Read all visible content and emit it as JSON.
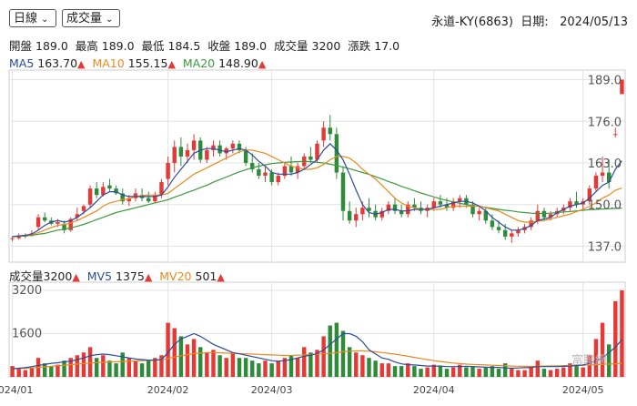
{
  "controls": {
    "period": "日線",
    "indicator": "成交量"
  },
  "header": {
    "stock": "永道-KY(6863)",
    "date_label": "日期:",
    "date": "2024/05/13"
  },
  "ohlc": {
    "open_label": "開盤",
    "open": "189.0",
    "high_label": "最高",
    "high": "189.0",
    "low_label": "最低",
    "low": "184.5",
    "close_label": "收盤",
    "close": "189.0",
    "volume_label": "成交量",
    "volume": "3200",
    "change_label": "漲跌",
    "change": "17.0"
  },
  "ma_legend": [
    {
      "label": "MA5",
      "value": "163.70",
      "arrow": "▲",
      "color": "#2b4b9b"
    },
    {
      "label": "MA10",
      "value": "155.15",
      "arrow": "▲",
      "color": "#e98a1f"
    },
    {
      "label": "MA20",
      "value": "148.90",
      "arrow": "▲",
      "color": "#3c9a3c"
    }
  ],
  "vol_legend": [
    {
      "label": "成交量",
      "value": "3200",
      "arrow": "▲",
      "color": "#222222"
    },
    {
      "label": "MV5",
      "value": "1375",
      "arrow": "▲",
      "color": "#2b4b9b"
    },
    {
      "label": "MV20",
      "value": "501",
      "arrow": "▲",
      "color": "#e98a1f"
    }
  ],
  "watermark": "富聯網",
  "colors": {
    "up": "#e53935",
    "down": "#2e8b3a",
    "ma5": "#2b4b9b",
    "ma10": "#e98a1f",
    "ma20": "#3c9a3c"
  },
  "chart_data": {
    "type": "candlestick",
    "price_axis": {
      "ticks": [
        "189.0",
        "176.0",
        "163.0",
        "150.0",
        "137.0"
      ],
      "values": [
        189,
        176,
        163,
        150,
        137
      ],
      "ylim": [
        132,
        192
      ]
    },
    "volume_axis": {
      "ticks": [
        "3200",
        "1600"
      ],
      "values": [
        3200,
        1600
      ],
      "ylim": [
        0,
        3500
      ]
    },
    "x_labels": [
      {
        "label": "2024/01",
        "index": 0
      },
      {
        "label": "2024/02",
        "index": 24
      },
      {
        "label": "2024/03",
        "index": 40
      },
      {
        "label": "2024/04",
        "index": 65
      },
      {
        "label": "2024/05",
        "index": 88
      }
    ],
    "candles": [
      [
        139.5,
        140,
        138.5,
        139.5,
        400
      ],
      [
        139.5,
        141,
        139,
        140,
        300
      ],
      [
        140,
        141,
        139.5,
        140.5,
        250
      ],
      [
        140.5,
        142,
        140,
        141,
        350
      ],
      [
        143,
        147,
        142,
        146,
        700
      ],
      [
        146,
        147.5,
        144.5,
        145,
        500
      ],
      [
        145,
        146,
        143.5,
        144,
        400
      ],
      [
        144,
        145.5,
        143,
        144.5,
        450
      ],
      [
        144,
        145,
        141,
        142,
        600
      ],
      [
        142,
        146,
        141.5,
        145.5,
        700
      ],
      [
        146,
        149,
        145,
        147,
        800
      ],
      [
        148,
        150,
        147,
        149.5,
        900
      ],
      [
        150,
        156,
        149,
        155,
        1100
      ],
      [
        155,
        157,
        152,
        153,
        700
      ],
      [
        153,
        157,
        152.5,
        155.5,
        800
      ],
      [
        156,
        158,
        154,
        155,
        600
      ],
      [
        155,
        156,
        153,
        153.5,
        500
      ],
      [
        153.5,
        155,
        150,
        151,
        900
      ],
      [
        151,
        153,
        149.5,
        152,
        700
      ],
      [
        152,
        155,
        151,
        153.5,
        600
      ],
      [
        153,
        155,
        151,
        152,
        500
      ],
      [
        152,
        154,
        150.5,
        151,
        600
      ],
      [
        151,
        154,
        150.5,
        153,
        700
      ],
      [
        153,
        158,
        152,
        157,
        800
      ],
      [
        158,
        165,
        156,
        163,
        2000
      ],
      [
        163,
        170,
        160,
        168,
        1800
      ],
      [
        168,
        171,
        162,
        165,
        1500
      ],
      [
        165,
        169,
        163,
        167,
        1200
      ],
      [
        167,
        172,
        164,
        170,
        1400
      ],
      [
        170,
        171,
        163,
        164,
        1100
      ],
      [
        164,
        168,
        163,
        167,
        900
      ],
      [
        167,
        170,
        165,
        168.5,
        1000
      ],
      [
        168.5,
        170,
        165,
        166,
        800
      ],
      [
        166,
        168,
        164,
        167.5,
        700
      ],
      [
        167.5,
        170,
        166,
        169,
        900
      ],
      [
        169,
        170,
        166,
        167,
        700
      ],
      [
        167,
        168,
        162,
        163,
        700
      ],
      [
        163,
        166,
        160,
        161,
        600
      ],
      [
        161,
        163,
        158,
        159,
        500
      ],
      [
        159,
        162,
        157,
        160,
        600
      ],
      [
        160,
        161,
        156,
        157,
        500
      ],
      [
        157,
        160,
        156,
        159,
        600
      ],
      [
        159,
        163,
        158,
        162,
        700
      ],
      [
        162,
        165,
        159,
        160,
        800
      ],
      [
        160,
        163,
        158,
        162,
        700
      ],
      [
        162,
        166,
        161,
        165,
        1100
      ],
      [
        165,
        168,
        163,
        164,
        900
      ],
      [
        164,
        170,
        163,
        169,
        1000
      ],
      [
        170,
        176,
        168,
        174,
        1500
      ],
      [
        174,
        178,
        170,
        172,
        1900
      ],
      [
        172,
        174,
        158,
        160,
        2000
      ],
      [
        160,
        162,
        145,
        148,
        1700
      ],
      [
        148,
        151,
        144,
        145,
        1100
      ],
      [
        145,
        149,
        143,
        147,
        900
      ],
      [
        147,
        151,
        145,
        149,
        800
      ],
      [
        149,
        152,
        146,
        148,
        700
      ],
      [
        148,
        150,
        145,
        146,
        600
      ],
      [
        146,
        149,
        145,
        148,
        500
      ],
      [
        148,
        151,
        147,
        150,
        500
      ],
      [
        150,
        152,
        147,
        148,
        400
      ],
      [
        148,
        150,
        146,
        147,
        400
      ],
      [
        147,
        151,
        146,
        150,
        500
      ],
      [
        150,
        152,
        148,
        149,
        400
      ],
      [
        149,
        151,
        147,
        148,
        300
      ],
      [
        148,
        150,
        146,
        149,
        350
      ],
      [
        149,
        152,
        148,
        151,
        450
      ],
      [
        151,
        153,
        149,
        150,
        400
      ],
      [
        150,
        152,
        148,
        149,
        300
      ],
      [
        149,
        152,
        148,
        151,
        350
      ],
      [
        151,
        153,
        149,
        152,
        450
      ],
      [
        152,
        153,
        149,
        150,
        350
      ],
      [
        150,
        151,
        146,
        147,
        400
      ],
      [
        147,
        149,
        145,
        148,
        300
      ],
      [
        148,
        149,
        144,
        145,
        350
      ],
      [
        145,
        147,
        142,
        143,
        400
      ],
      [
        143,
        145,
        141,
        142,
        300
      ],
      [
        142,
        144,
        139,
        140,
        500
      ],
      [
        140,
        142,
        138,
        141,
        300
      ],
      [
        141,
        143,
        140,
        142,
        250
      ],
      [
        142,
        144,
        141,
        143,
        250
      ],
      [
        143,
        146,
        142,
        145,
        400
      ],
      [
        145,
        150,
        144,
        148,
        600
      ],
      [
        148,
        149,
        145,
        146,
        300
      ],
      [
        146,
        148,
        145,
        147,
        250
      ],
      [
        147,
        149,
        146,
        148,
        300
      ],
      [
        148,
        150,
        147,
        149,
        350
      ],
      [
        149,
        152,
        148,
        151,
        500
      ],
      [
        151,
        154,
        149,
        150,
        400
      ],
      [
        150,
        152,
        148,
        151,
        350
      ],
      [
        151,
        156,
        150,
        155,
        800
      ],
      [
        155,
        160,
        154,
        159,
        1400
      ],
      [
        159,
        165,
        157,
        160,
        2000
      ],
      [
        160,
        164,
        155,
        157,
        1200
      ],
      [
        172,
        174,
        171,
        172,
        2800
      ],
      [
        184.5,
        189,
        184.5,
        189,
        3200
      ]
    ],
    "ma5": [
      140,
      140.2,
      140.4,
      140.8,
      142,
      143.5,
      144.5,
      145,
      144.5,
      145,
      146,
      147.5,
      149,
      151,
      153,
      154,
      154,
      153,
      152.5,
      152.5,
      152.5,
      152.5,
      152.5,
      153,
      155.5,
      158.5,
      161,
      163.5,
      166,
      167,
      167.5,
      167.5,
      167,
      166.5,
      167,
      167.5,
      167,
      165.5,
      163.5,
      162,
      160,
      159.5,
      159.5,
      159.5,
      160,
      161,
      162.5,
      164,
      167,
      169,
      167,
      164,
      159.5,
      154.5,
      150,
      147.5,
      147,
      147.5,
      148.5,
      148.5,
      148,
      148,
      148.5,
      148.5,
      148.5,
      149,
      149.5,
      150,
      150.5,
      151,
      151,
      150.5,
      149.5,
      148,
      146,
      144.5,
      143,
      142,
      142,
      142.5,
      143.5,
      145,
      145.5,
      146,
      147.5,
      148.5,
      149.5,
      150,
      150.5,
      152,
      154,
      156,
      157,
      161,
      163.7
    ],
    "ma10": [
      140,
      140.2,
      140.4,
      140.6,
      141.2,
      142,
      142.8,
      143.5,
      143.8,
      144.2,
      145,
      146,
      147,
      148,
      149.5,
      150.5,
      151,
      151.5,
      151.8,
      152.5,
      152.8,
      153,
      153,
      153,
      153.5,
      155,
      156.5,
      158,
      159.5,
      160.5,
      161.5,
      162.5,
      163.5,
      164.5,
      165.5,
      166.5,
      167,
      167,
      166.5,
      166,
      165,
      164,
      163,
      162,
      161.5,
      161,
      161,
      161.5,
      162.5,
      164,
      165,
      165,
      164.5,
      163,
      161,
      159.5,
      158,
      156,
      154,
      152,
      150.5,
      149.5,
      149,
      148.5,
      148.5,
      148.5,
      148.5,
      149,
      149.5,
      149.5,
      149.5,
      149.5,
      149.5,
      149,
      148.5,
      148,
      147,
      146,
      145,
      144.5,
      144.5,
      144.8,
      145,
      145.5,
      146,
      146.5,
      147,
      147.8,
      148.5,
      149.5,
      150.5,
      152,
      153,
      154.5,
      155.15
    ],
    "ma20": [
      140,
      140.1,
      140.2,
      140.4,
      140.7,
      141,
      141.5,
      142,
      142.3,
      142.7,
      143.2,
      143.8,
      144.5,
      145.3,
      146,
      146.8,
      147.5,
      148,
      148.5,
      149,
      149.5,
      150,
      150.5,
      151,
      151.5,
      152.3,
      153,
      153.8,
      154.5,
      155.3,
      156,
      157,
      157.8,
      158.6,
      159.4,
      160.2,
      160.9,
      161.5,
      162,
      162.4,
      162.8,
      163,
      163.2,
      163.3,
      163.4,
      163.5,
      163.4,
      163.2,
      163,
      162.6,
      162.2,
      161.7,
      161.2,
      160.6,
      160,
      159.4,
      158.7,
      158,
      157.2,
      156.5,
      155.7,
      155,
      154.3,
      153.6,
      153,
      152.4,
      151.8,
      151.3,
      150.8,
      150.4,
      150,
      149.7,
      149.4,
      149.1,
      148.8,
      148.5,
      148.2,
      148,
      147.7,
      147.5,
      147.3,
      147.2,
      147.2,
      147.3,
      147.5,
      147.7,
      147.8,
      148,
      148.2,
      148.4,
      148.5,
      148.6,
      148.7,
      148.8,
      148.9
    ],
    "mv5": [
      300,
      320,
      340,
      380,
      420,
      460,
      500,
      520,
      560,
      580,
      640,
      700,
      780,
      820,
      840,
      820,
      780,
      740,
      700,
      660,
      640,
      620,
      620,
      640,
      900,
      1200,
      1400,
      1500,
      1600,
      1500,
      1350,
      1200,
      1100,
      1000,
      900,
      850,
      800,
      750,
      700,
      650,
      600,
      580,
      600,
      640,
      700,
      760,
      800,
      860,
      1000,
      1200,
      1400,
      1600,
      1600,
      1500,
      1300,
      1000,
      850,
      700,
      650,
      550,
      480,
      450,
      440,
      420,
      400,
      400,
      400,
      380,
      380,
      380,
      390,
      380,
      370,
      360,
      350,
      350,
      330,
      320,
      330,
      340,
      350,
      380,
      380,
      380,
      380,
      390,
      400,
      420,
      440,
      500,
      600,
      700,
      900,
      1100,
      1375
    ],
    "mv20": [
      300,
      310,
      320,
      330,
      350,
      370,
      390,
      410,
      430,
      450,
      470,
      490,
      510,
      530,
      540,
      550,
      560,
      570,
      580,
      590,
      600,
      610,
      620,
      630,
      680,
      730,
      780,
      820,
      860,
      880,
      900,
      900,
      890,
      880,
      870,
      860,
      850,
      840,
      830,
      820,
      810,
      800,
      790,
      790,
      800,
      810,
      820,
      830,
      850,
      870,
      900,
      930,
      950,
      960,
      960,
      950,
      930,
      900,
      870,
      840,
      800,
      760,
      720,
      680,
      640,
      600,
      570,
      540,
      510,
      490,
      470,
      460,
      450,
      440,
      430,
      420,
      410,
      400,
      395,
      390,
      390,
      395,
      400,
      405,
      410,
      415,
      420,
      425,
      430,
      440,
      450,
      460,
      470,
      485,
      501
    ]
  }
}
